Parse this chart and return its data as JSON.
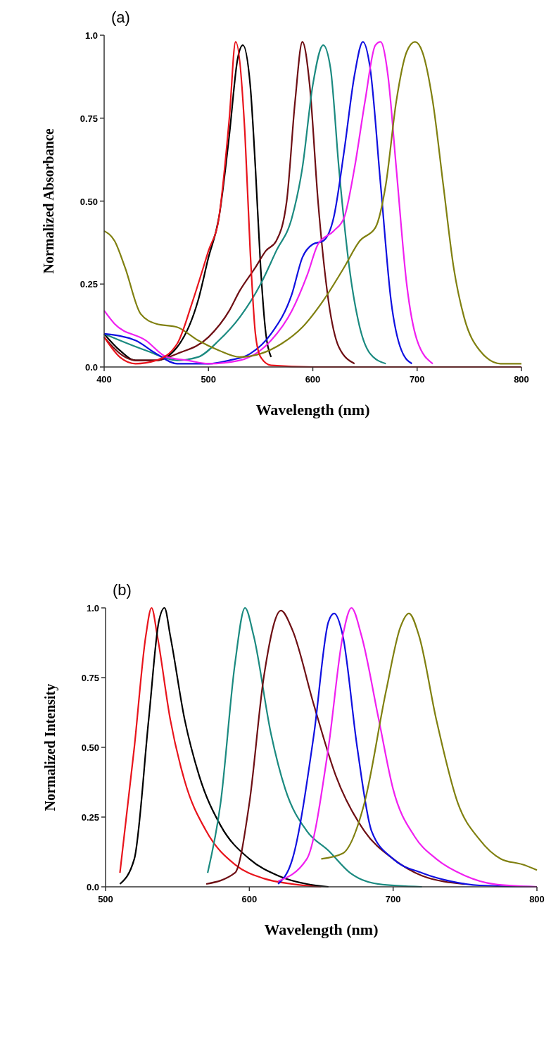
{
  "chart_data": [
    {
      "type": "line",
      "title": "(a)",
      "xlabel": "Wavelength (nm)",
      "ylabel": "Normalized Absorbance",
      "xlim": [
        400,
        800
      ],
      "xticks": [
        400,
        500,
        600,
        700,
        800
      ],
      "ylim": [
        0,
        1
      ],
      "yticks": [
        {
          "value": 0,
          "label": "0.0"
        },
        {
          "value": 0.25,
          "label": "0.25"
        },
        {
          "value": 0.5,
          "label": "0.50"
        },
        {
          "value": 0.75,
          "label": "0.75"
        },
        {
          "value": 1,
          "label": "1.0"
        }
      ],
      "series": [
        {
          "color": "#000000",
          "x": [
            400,
            415,
            430,
            450,
            470,
            490,
            500,
            510,
            520,
            528,
            533,
            540,
            545,
            550,
            555,
            560
          ],
          "values": [
            0.1,
            0.05,
            0.02,
            0.02,
            0.06,
            0.2,
            0.33,
            0.45,
            0.7,
            0.93,
            0.97,
            0.85,
            0.6,
            0.3,
            0.1,
            0.03
          ]
        },
        {
          "color": "#6e0f14",
          "x": [
            400,
            420,
            430,
            450,
            470,
            500,
            520,
            530,
            545,
            555,
            565,
            575,
            583,
            590,
            597,
            605,
            615,
            625,
            640
          ],
          "values": [
            0.09,
            0.03,
            0.02,
            0.02,
            0.04,
            0.09,
            0.17,
            0.23,
            0.3,
            0.35,
            0.38,
            0.5,
            0.8,
            0.98,
            0.85,
            0.5,
            0.2,
            0.06,
            0.01
          ]
        },
        {
          "color": "#1b8a80",
          "x": [
            400,
            440,
            470,
            490,
            510,
            530,
            550,
            565,
            580,
            590,
            600,
            610,
            617,
            625,
            635,
            645,
            655,
            670
          ],
          "values": [
            0.1,
            0.05,
            0.02,
            0.03,
            0.08,
            0.15,
            0.25,
            0.35,
            0.45,
            0.6,
            0.85,
            0.97,
            0.9,
            0.6,
            0.3,
            0.12,
            0.04,
            0.01
          ]
        },
        {
          "color": "#1010e0",
          "x": [
            400,
            430,
            450,
            470,
            500,
            520,
            540,
            560,
            580,
            590,
            600,
            610,
            620,
            630,
            640,
            648,
            655,
            665,
            675,
            685,
            695
          ],
          "values": [
            0.1,
            0.08,
            0.04,
            0.01,
            0.01,
            0.02,
            0.04,
            0.1,
            0.22,
            0.33,
            0.37,
            0.38,
            0.45,
            0.65,
            0.88,
            0.98,
            0.9,
            0.55,
            0.2,
            0.05,
            0.01
          ]
        },
        {
          "color": "#f020f0",
          "x": [
            400,
            410,
            440,
            460,
            480,
            500,
            530,
            560,
            580,
            595,
            605,
            620,
            630,
            640,
            650,
            660,
            665,
            672,
            680,
            690,
            700,
            715
          ],
          "values": [
            0.17,
            0.13,
            0.08,
            0.03,
            0.02,
            0.01,
            0.02,
            0.08,
            0.17,
            0.28,
            0.37,
            0.41,
            0.45,
            0.6,
            0.8,
            0.97,
            0.98,
            0.88,
            0.6,
            0.25,
            0.08,
            0.01
          ]
        },
        {
          "color": "#808010",
          "x": [
            400,
            410,
            420,
            435,
            450,
            470,
            490,
            510,
            530,
            550,
            570,
            590,
            610,
            630,
            645,
            660,
            670,
            680,
            690,
            698,
            705,
            715,
            725,
            735,
            745,
            760,
            780,
            800
          ],
          "values": [
            0.41,
            0.38,
            0.3,
            0.16,
            0.13,
            0.12,
            0.08,
            0.05,
            0.03,
            0.04,
            0.07,
            0.12,
            0.2,
            0.3,
            0.38,
            0.42,
            0.55,
            0.8,
            0.95,
            0.98,
            0.95,
            0.8,
            0.55,
            0.3,
            0.15,
            0.05,
            0.01,
            0.01
          ]
        },
        {
          "color": "#e8141c",
          "x": [
            400,
            415,
            430,
            450,
            470,
            485,
            500,
            510,
            520,
            526,
            535,
            540,
            545,
            550,
            560,
            600,
            700,
            800
          ],
          "values": [
            0.09,
            0.03,
            0.01,
            0.02,
            0.07,
            0.2,
            0.35,
            0.45,
            0.75,
            0.98,
            0.7,
            0.35,
            0.1,
            0.03,
            0.005,
            0,
            0,
            0
          ]
        }
      ]
    },
    {
      "type": "line",
      "title": "(b)",
      "xlabel": "Wavelength (nm)",
      "ylabel": "Normalized Intensity",
      "xlim": [
        500,
        800
      ],
      "xticks": [
        500,
        600,
        700,
        800
      ],
      "ylim": [
        0,
        1
      ],
      "yticks": [
        {
          "value": 0,
          "label": "0.0"
        },
        {
          "value": 0.25,
          "label": "0.25"
        },
        {
          "value": 0.5,
          "label": "0.50"
        },
        {
          "value": 0.75,
          "label": "0.75"
        },
        {
          "value": 1,
          "label": "1.0"
        }
      ],
      "series": [
        {
          "color": "#e8141c",
          "x": [
            510,
            520,
            528,
            532,
            536,
            545,
            555,
            570,
            590,
            610,
            630,
            650
          ],
          "values": [
            0.05,
            0.5,
            0.9,
            1,
            0.9,
            0.6,
            0.38,
            0.2,
            0.08,
            0.03,
            0.01,
            0
          ]
        },
        {
          "color": "#000000",
          "x": [
            510,
            520,
            530,
            537,
            541,
            545,
            555,
            565,
            580,
            600,
            620,
            640,
            655
          ],
          "values": [
            0.01,
            0.1,
            0.6,
            0.95,
            1,
            0.9,
            0.6,
            0.4,
            0.22,
            0.1,
            0.04,
            0.01,
            0
          ]
        },
        {
          "color": "#1b8a80",
          "x": [
            571,
            580,
            590,
            597,
            603,
            615,
            625,
            640,
            655,
            670,
            690,
            720
          ],
          "values": [
            0.05,
            0.3,
            0.8,
            1,
            0.9,
            0.55,
            0.35,
            0.2,
            0.13,
            0.05,
            0.01,
            0
          ]
        },
        {
          "color": "#6e0f14",
          "x": [
            570,
            590,
            600,
            610,
            622,
            630,
            645,
            660,
            680,
            700,
            720,
            750
          ],
          "values": [
            0.01,
            0.05,
            0.3,
            0.75,
            0.99,
            0.92,
            0.65,
            0.4,
            0.2,
            0.1,
            0.04,
            0.01
          ]
        },
        {
          "color": "#1010e0",
          "x": [
            620,
            630,
            645,
            655,
            659,
            665,
            675,
            685,
            700,
            720,
            740,
            760,
            800
          ],
          "values": [
            0.01,
            0.1,
            0.55,
            0.95,
            0.98,
            0.9,
            0.5,
            0.2,
            0.1,
            0.05,
            0.02,
            0.005,
            0
          ]
        },
        {
          "color": "#f020f0",
          "x": [
            620,
            640,
            655,
            665,
            671,
            678,
            690,
            700,
            715,
            730,
            750,
            770,
            800
          ],
          "values": [
            0.02,
            0.1,
            0.5,
            0.9,
            1,
            0.9,
            0.6,
            0.35,
            0.18,
            0.1,
            0.04,
            0.01,
            0
          ]
        },
        {
          "color": "#808010",
          "x": [
            650,
            665,
            680,
            695,
            705,
            711,
            718,
            730,
            745,
            760,
            775,
            790,
            800
          ],
          "values": [
            0.1,
            0.12,
            0.3,
            0.7,
            0.93,
            0.98,
            0.9,
            0.6,
            0.3,
            0.17,
            0.1,
            0.08,
            0.06
          ]
        }
      ]
    }
  ]
}
